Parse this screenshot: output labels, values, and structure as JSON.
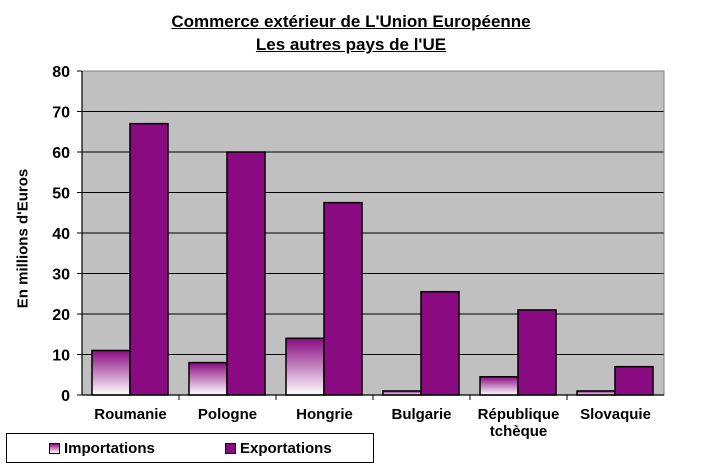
{
  "colors": {
    "plot_bg": "#c0c0c0",
    "export": "#8a0a82",
    "import_top": "#8a0a82",
    "import_bottom": "#ffffff"
  },
  "chart_data": {
    "type": "bar",
    "title": "Commerce extérieur de L'Union Européenne",
    "subtitle": "Les autres pays de l'UE",
    "ylabel": "En millions d'Euros",
    "xlabel": "",
    "ylim": [
      0,
      80
    ],
    "yticks": [
      0,
      10,
      20,
      30,
      40,
      50,
      60,
      70,
      80
    ],
    "grid": true,
    "legend_position": "bottom-left",
    "categories": [
      "Roumanie",
      "Pologne",
      "Hongrie",
      "Bulgarie",
      "République tchèque",
      "Slovaquie"
    ],
    "series": [
      {
        "name": "Importations",
        "values": [
          11,
          8,
          14,
          1,
          4.5,
          1
        ]
      },
      {
        "name": "Exportations",
        "values": [
          67,
          60,
          47.5,
          25.5,
          21,
          7
        ]
      }
    ]
  }
}
